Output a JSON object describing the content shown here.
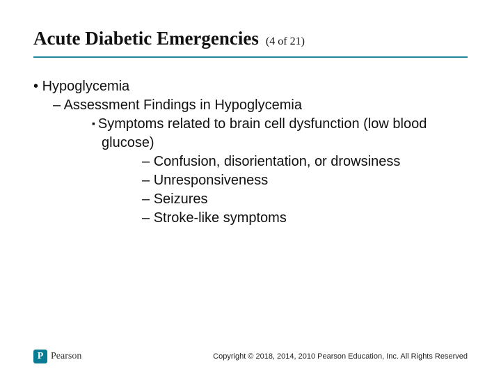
{
  "colors": {
    "accent": "#1b8a9e",
    "text": "#111111",
    "logo_bg": "#0a7b94",
    "logo_text": "#333333",
    "background": "#ffffff"
  },
  "title": {
    "text": "Acute Diabetic Emergencies",
    "page_of": "(4 of 21)",
    "title_fontsize": 27,
    "pageof_fontsize": 16,
    "font_family": "Times New Roman"
  },
  "content": {
    "fontsize": 20,
    "lvl1": {
      "item0": "Hypoglycemia"
    },
    "lvl2": {
      "item0": "Assessment Findings in Hypoglycemia"
    },
    "lvl3": {
      "item0": "Symptoms related to brain cell dysfunction (low blood glucose)"
    },
    "lvl4": {
      "item0": "Confusion, disorientation, or drowsiness",
      "item1": "Unresponsiveness",
      "item2": "Seizures",
      "item3": "Stroke-like symptoms"
    }
  },
  "footer": {
    "logo_letter": "P",
    "logo_name": "Pearson",
    "copyright": "Copyright © 2018, 2014, 2010 Pearson Education, Inc. All Rights Reserved"
  }
}
